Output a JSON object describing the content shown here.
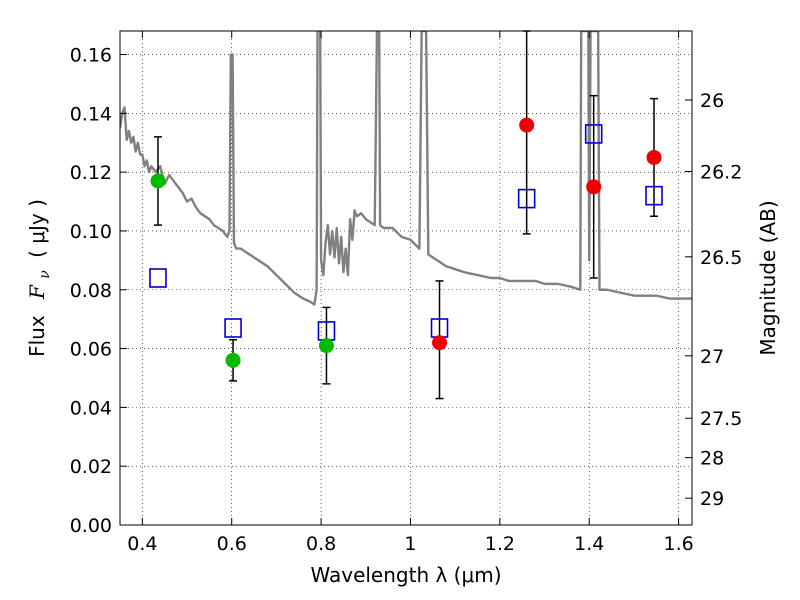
{
  "chart_data": {
    "type": "scatter",
    "xlabel": "Wavelength  λ (μm)",
    "ylabel_text": "Flux",
    "ylabel_symbol": "F",
    "ylabel_symbol_sub": "ν",
    "ylabel_units": "( μJy )",
    "y2label": "Magnitude (AB)",
    "xlim": [
      0.35,
      1.63
    ],
    "ylim": [
      0.0,
      0.168
    ],
    "grid": true,
    "x_ticks": [
      0.4,
      0.6,
      0.8,
      1.0,
      1.2,
      1.4,
      1.6
    ],
    "x_tick_labels": [
      "0.4",
      "0.6",
      "0.8",
      "1",
      "1.2",
      "1.4",
      "1.6"
    ],
    "y_ticks": [
      0.0,
      0.02,
      0.04,
      0.06,
      0.08,
      0.1,
      0.12,
      0.14,
      0.16
    ],
    "y_tick_labels": [
      "0.00",
      "0.02",
      "0.04",
      "0.06",
      "0.08",
      "0.10",
      "0.12",
      "0.14",
      "0.16"
    ],
    "y2_ticks": [
      26,
      26.2,
      26.5,
      27,
      27.5,
      28,
      29
    ],
    "y2_tick_labels": [
      "26",
      "26.2",
      "26.5",
      "27",
      "27.5",
      "28",
      "29"
    ],
    "colors": {
      "model": "#808080",
      "green": "#00bb00",
      "red": "#ee0000",
      "square": "#0000cc",
      "errorbar": "#000000"
    },
    "series": [
      {
        "kind": "model_sed",
        "points": [
          [
            0.35,
            0.135
          ],
          [
            0.355,
            0.14
          ],
          [
            0.36,
            0.142
          ],
          [
            0.365,
            0.131
          ],
          [
            0.37,
            0.134
          ],
          [
            0.375,
            0.13
          ],
          [
            0.38,
            0.132
          ],
          [
            0.385,
            0.127
          ],
          [
            0.39,
            0.13
          ],
          [
            0.395,
            0.126
          ],
          [
            0.4,
            0.126
          ],
          [
            0.405,
            0.122
          ],
          [
            0.41,
            0.124
          ],
          [
            0.415,
            0.12
          ],
          [
            0.42,
            0.122
          ],
          [
            0.43,
            0.12
          ],
          [
            0.44,
            0.122
          ],
          [
            0.45,
            0.116
          ],
          [
            0.46,
            0.119
          ],
          [
            0.47,
            0.117
          ],
          [
            0.48,
            0.115
          ],
          [
            0.49,
            0.113
          ],
          [
            0.5,
            0.11
          ],
          [
            0.51,
            0.111
          ],
          [
            0.52,
            0.108
          ],
          [
            0.53,
            0.106
          ],
          [
            0.54,
            0.105
          ],
          [
            0.55,
            0.104
          ],
          [
            0.56,
            0.102
          ],
          [
            0.57,
            0.101
          ],
          [
            0.58,
            0.1
          ],
          [
            0.59,
            0.098
          ],
          [
            0.595,
            0.1
          ],
          [
            0.598,
            0.16
          ],
          [
            0.602,
            0.16
          ],
          [
            0.605,
            0.096
          ],
          [
            0.61,
            0.094
          ],
          [
            0.62,
            0.094
          ],
          [
            0.64,
            0.092
          ],
          [
            0.66,
            0.09
          ],
          [
            0.68,
            0.088
          ],
          [
            0.7,
            0.085
          ],
          [
            0.72,
            0.082
          ],
          [
            0.74,
            0.079
          ],
          [
            0.76,
            0.077
          ],
          [
            0.775,
            0.076
          ],
          [
            0.785,
            0.075
          ],
          [
            0.79,
            0.08
          ],
          [
            0.792,
            0.168
          ],
          [
            0.798,
            0.168
          ],
          [
            0.8,
            0.09
          ],
          [
            0.805,
            0.085
          ],
          [
            0.81,
            0.096
          ],
          [
            0.815,
            0.102
          ],
          [
            0.82,
            0.092
          ],
          [
            0.825,
            0.1
          ],
          [
            0.83,
            0.091
          ],
          [
            0.835,
            0.101
          ],
          [
            0.84,
            0.089
          ],
          [
            0.845,
            0.098
          ],
          [
            0.85,
            0.086
          ],
          [
            0.855,
            0.094
          ],
          [
            0.86,
            0.085
          ],
          [
            0.865,
            0.104
          ],
          [
            0.87,
            0.097
          ],
          [
            0.875,
            0.107
          ],
          [
            0.88,
            0.105
          ],
          [
            0.89,
            0.106
          ],
          [
            0.9,
            0.104
          ],
          [
            0.91,
            0.103
          ],
          [
            0.92,
            0.102
          ],
          [
            0.925,
            0.168
          ],
          [
            0.93,
            0.168
          ],
          [
            0.932,
            0.102
          ],
          [
            0.94,
            0.101
          ],
          [
            0.96,
            0.101
          ],
          [
            0.98,
            0.098
          ],
          [
            1.0,
            0.097
          ],
          [
            1.02,
            0.094
          ],
          [
            1.025,
            0.168
          ],
          [
            1.035,
            0.168
          ],
          [
            1.04,
            0.092
          ],
          [
            1.06,
            0.09
          ],
          [
            1.08,
            0.088
          ],
          [
            1.1,
            0.087
          ],
          [
            1.12,
            0.086
          ],
          [
            1.15,
            0.085
          ],
          [
            1.18,
            0.084
          ],
          [
            1.2,
            0.084
          ],
          [
            1.22,
            0.083
          ],
          [
            1.25,
            0.083
          ],
          [
            1.28,
            0.083
          ],
          [
            1.3,
            0.082
          ],
          [
            1.33,
            0.082
          ],
          [
            1.36,
            0.081
          ],
          [
            1.38,
            0.08
          ],
          [
            1.382,
            0.168
          ],
          [
            1.398,
            0.168
          ],
          [
            1.4,
            0.09
          ],
          [
            1.403,
            0.168
          ],
          [
            1.42,
            0.168
          ],
          [
            1.423,
            0.08
          ],
          [
            1.44,
            0.08
          ],
          [
            1.47,
            0.079
          ],
          [
            1.5,
            0.078
          ],
          [
            1.55,
            0.078
          ],
          [
            1.58,
            0.077
          ],
          [
            1.6,
            0.077
          ],
          [
            1.63,
            0.077
          ]
        ]
      },
      {
        "kind": "green_points",
        "points": [
          {
            "x": 0.435,
            "y": 0.117,
            "ylo": 0.102,
            "yhi": 0.132
          },
          {
            "x": 0.603,
            "y": 0.056,
            "ylo": 0.049,
            "yhi": 0.063
          },
          {
            "x": 0.812,
            "y": 0.061,
            "ylo": 0.048,
            "yhi": 0.074
          }
        ]
      },
      {
        "kind": "red_points",
        "points": [
          {
            "x": 1.065,
            "y": 0.062,
            "ylo": 0.043,
            "yhi": 0.083
          },
          {
            "x": 1.26,
            "y": 0.136,
            "ylo": 0.099,
            "yhi": 0.168
          },
          {
            "x": 1.41,
            "y": 0.115,
            "ylo": 0.084,
            "yhi": 0.146
          },
          {
            "x": 1.545,
            "y": 0.125,
            "ylo": 0.105,
            "yhi": 0.145
          }
        ]
      },
      {
        "kind": "model_squares",
        "points": [
          {
            "x": 0.435,
            "y": 0.084
          },
          {
            "x": 0.603,
            "y": 0.067
          },
          {
            "x": 0.812,
            "y": 0.066
          },
          {
            "x": 1.065,
            "y": 0.067
          },
          {
            "x": 1.26,
            "y": 0.111
          },
          {
            "x": 1.41,
            "y": 0.133
          },
          {
            "x": 1.545,
            "y": 0.112
          }
        ]
      }
    ]
  }
}
